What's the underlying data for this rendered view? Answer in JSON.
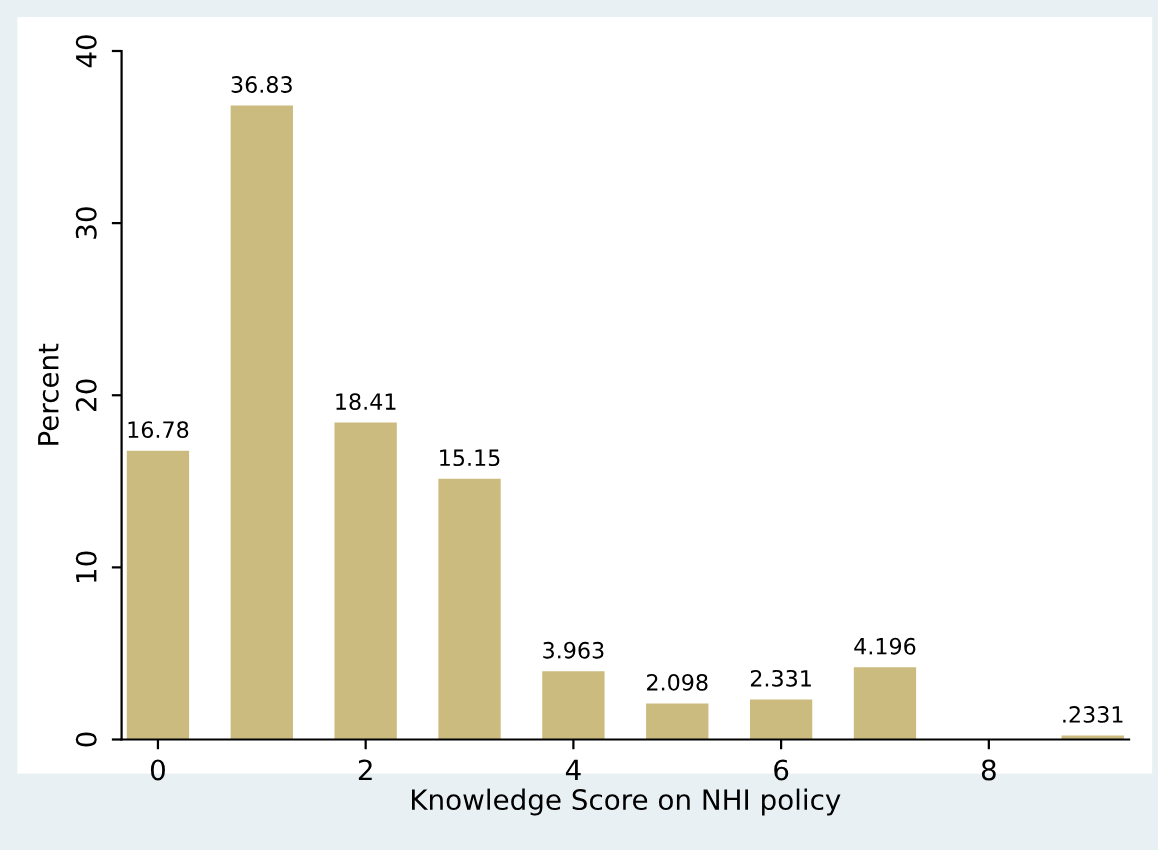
{
  "chart_data": {
    "type": "bar",
    "xlabel": "Knowledge Score on NHI policy",
    "ylabel": "Percent",
    "x": [
      0,
      1,
      2,
      3,
      4,
      5,
      6,
      7,
      8,
      9
    ],
    "values": [
      16.78,
      36.83,
      18.41,
      15.15,
      3.963,
      2.098,
      2.331,
      4.196,
      null,
      0.2331
    ],
    "value_labels": [
      "16.78",
      "36.83",
      "18.41",
      "15.15",
      "3.963",
      "2.098",
      "2.331",
      "4.196",
      null,
      ".2331"
    ],
    "color": "#cbbb7e",
    "xlim": [
      -0.35,
      9.35
    ],
    "ylim": [
      0,
      40
    ],
    "xticks": [
      0,
      2,
      4,
      6,
      8
    ],
    "yticks": [
      0,
      10,
      20,
      30,
      40
    ],
    "grid": false,
    "legend": false
  }
}
